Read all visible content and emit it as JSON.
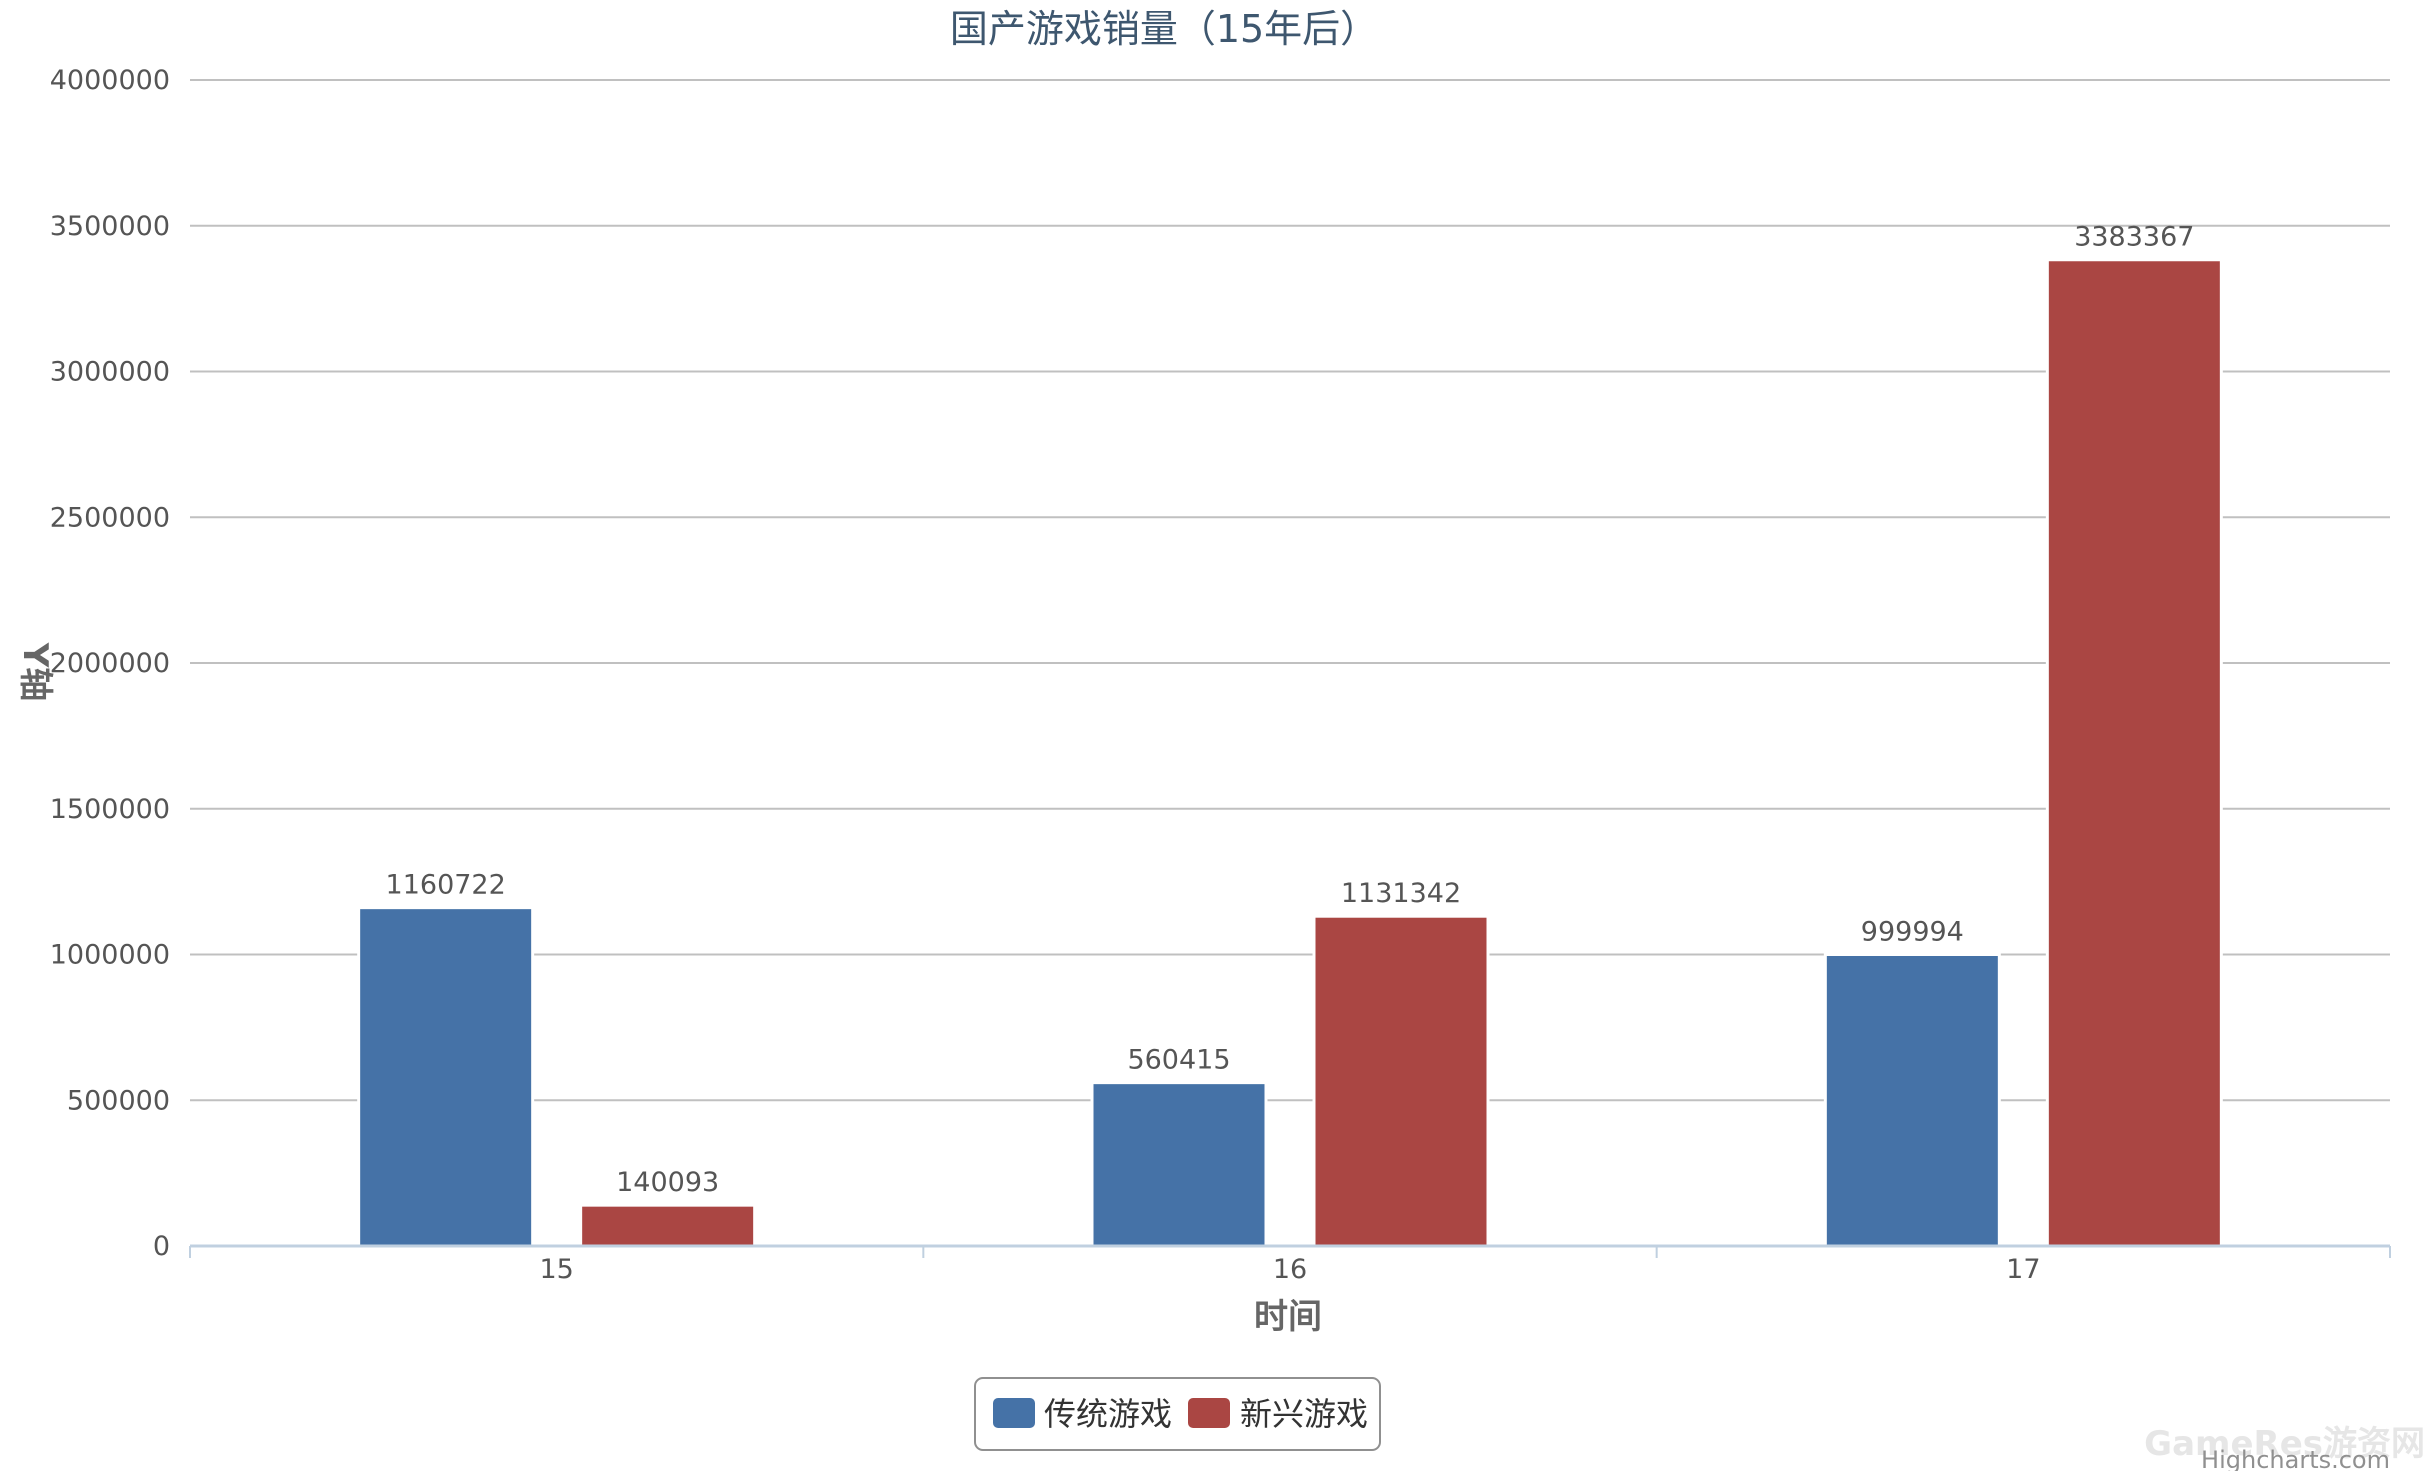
{
  "chart_data": {
    "type": "bar",
    "title": "国产游戏销量（15年后）",
    "xlabel": "时间",
    "ylabel": "Y轴",
    "categories": [
      "15",
      "16",
      "17"
    ],
    "ylim": [
      0,
      4000000
    ],
    "yticks": [
      0,
      500000,
      1000000,
      1500000,
      2000000,
      2500000,
      3000000,
      3500000,
      4000000
    ],
    "series": [
      {
        "name": "传统游戏",
        "color": "#4572a7",
        "values": [
          1160722,
          560415,
          999994
        ]
      },
      {
        "name": "新兴游戏",
        "color": "#aa4643",
        "values": [
          140093,
          1131342,
          3383367
        ]
      }
    ],
    "legend_position": "bottom-center",
    "grid": true
  },
  "credits": "Highcharts.com",
  "watermark": "GameRes游资网"
}
